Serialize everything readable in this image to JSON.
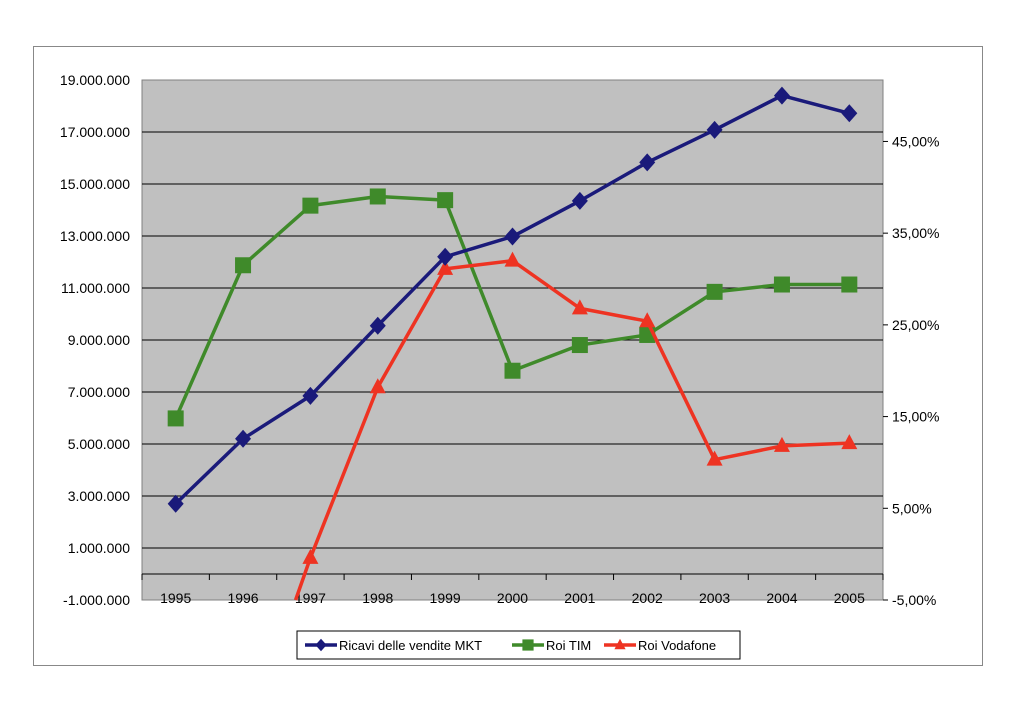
{
  "chart_data": {
    "type": "line",
    "categories": [
      "1995",
      "1996",
      "1997",
      "1998",
      "1999",
      "2000",
      "2001",
      "2002",
      "2003",
      "2004",
      "2005"
    ],
    "y_left": {
      "min": -1000000,
      "max": 19000000,
      "ticks": [
        "19.000.000",
        "17.000.000",
        "15.000.000",
        "13.000.000",
        "11.000.000",
        "9.000.000",
        "7.000.000",
        "5.000.000",
        "3.000.000",
        "1.000.000",
        "-1.000.000"
      ],
      "tick_values": [
        19000000,
        17000000,
        15000000,
        13000000,
        11000000,
        9000000,
        7000000,
        5000000,
        3000000,
        1000000,
        -1000000
      ]
    },
    "y_right": {
      "min": -5,
      "max": 51.7,
      "ticks": [
        "45,00%",
        "35,00%",
        "25,00%",
        "15,00%",
        "5,00%",
        "-5,00%"
      ],
      "tick_values": [
        45,
        35,
        25,
        15,
        5,
        -5
      ]
    },
    "grid": true,
    "legend_position": "bottom",
    "series": [
      {
        "name": "Ricavi delle vendite MKT",
        "axis": "left",
        "marker": "diamond",
        "color": "#1a1a7a",
        "values": [
          2700000,
          5200000,
          6850000,
          9550000,
          12200000,
          12980000,
          14350000,
          15830000,
          17080000,
          18400000,
          17720000
        ]
      },
      {
        "name": "Roi TIM",
        "axis": "right",
        "marker": "square",
        "color": "#3f8a2a",
        "values": [
          14.8,
          31.5,
          38.0,
          39.0,
          38.6,
          20.0,
          22.8,
          23.9,
          28.6,
          29.4,
          29.4
        ]
      },
      {
        "name": "Roi Vodafone",
        "axis": "right",
        "marker": "triangle",
        "color": "#ee3322",
        "values": [
          null,
          null,
          -0.4,
          18.2,
          31.1,
          32.0,
          26.8,
          25.4,
          10.3,
          11.8,
          12.1
        ],
        "left_endpoint": {
          "x": "1996.78",
          "value": -5
        }
      }
    ]
  },
  "legend": {
    "ricavi": "Ricavi delle vendite MKT",
    "tim": "Roi TIM",
    "vodafone": "Roi Vodafone"
  },
  "colors": {
    "plot_bg": "#c0c0c0",
    "negative_tick": "#cc2222"
  }
}
